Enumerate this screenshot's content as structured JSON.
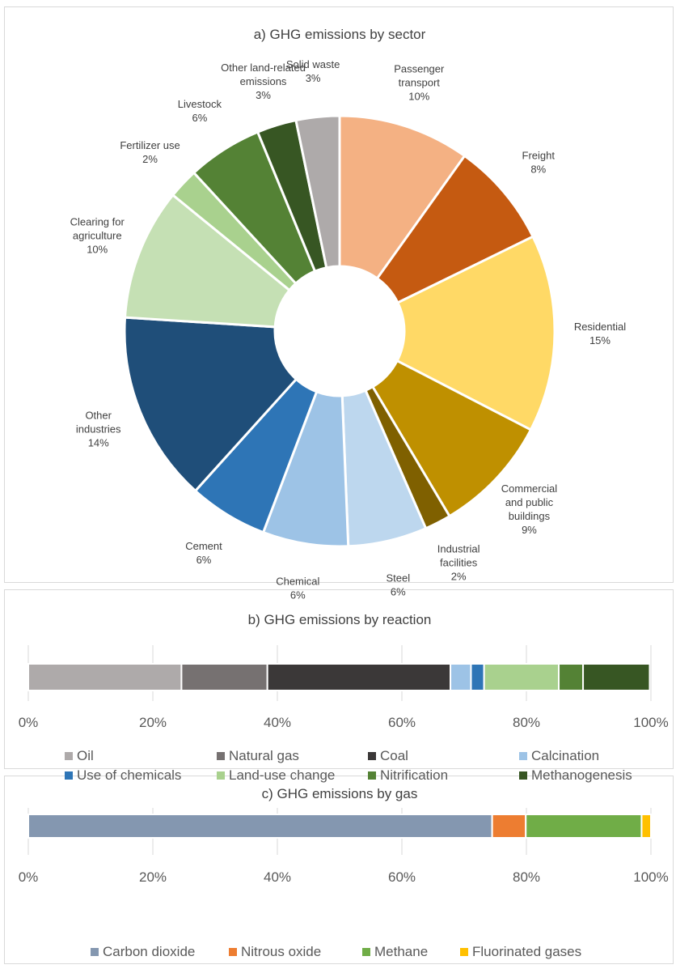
{
  "chart_data": [
    {
      "type": "pie",
      "title": "a) GHG emissions by sector",
      "slices": [
        {
          "label": [
            "Passenger",
            "transport"
          ],
          "value": 10,
          "pct": "10%",
          "color": "#F4B183"
        },
        {
          "label": [
            "Freight"
          ],
          "value": 8,
          "pct": "8%",
          "color": "#C55A11"
        },
        {
          "label": [
            "Residential"
          ],
          "value": 15,
          "pct": "15%",
          "color": "#FFD966"
        },
        {
          "label": [
            "Commercial",
            "and public",
            "buildings"
          ],
          "value": 9,
          "pct": "9%",
          "color": "#BF9000"
        },
        {
          "label": [
            "Industrial",
            "facilities"
          ],
          "value": 2,
          "pct": "2%",
          "color": "#7F6000"
        },
        {
          "label": [
            "Steel"
          ],
          "value": 6,
          "pct": "6%",
          "color": "#BDD7EE"
        },
        {
          "label": [
            "Chemical"
          ],
          "value": 6.5,
          "pct": "6%",
          "color": "#9DC3E6"
        },
        {
          "label": [
            "Cement"
          ],
          "value": 6,
          "pct": "6%",
          "color": "#2E75B6"
        },
        {
          "label": [
            "Other",
            "industries"
          ],
          "value": 14.5,
          "pct": "14%",
          "color": "#1F4E79"
        },
        {
          "label": [
            "Clearing for",
            "agriculture"
          ],
          "value": 10,
          "pct": "10%",
          "color": "#C5E0B4"
        },
        {
          "label": [
            "Fertilizer use"
          ],
          "value": 2.3,
          "pct": "2%",
          "color": "#A9D18E"
        },
        {
          "label": [
            "Livestock"
          ],
          "value": 5.7,
          "pct": "6%",
          "color": "#548235"
        },
        {
          "label": [
            "Other land-related",
            "emissions"
          ],
          "value": 3,
          "pct": "3%",
          "color": "#375623"
        },
        {
          "label": [
            "Solid waste"
          ],
          "value": 3.3,
          "pct": "3%",
          "color": "#AEAAAA"
        }
      ]
    },
    {
      "type": "bar",
      "orientation": "horizontal-stacked",
      "title": "b) GHG emissions by reaction",
      "xlim": [
        0,
        100
      ],
      "ticks": [
        "0%",
        "20%",
        "40%",
        "60%",
        "80%",
        "100%"
      ],
      "legend_position": "bottom",
      "series": [
        {
          "name": "Oil",
          "value": 24.6,
          "color": "#AEAAAA"
        },
        {
          "name": "Natural gas",
          "value": 13.8,
          "color": "#767171"
        },
        {
          "name": "Coal",
          "value": 29.4,
          "color": "#3B3838"
        },
        {
          "name": "Calcination",
          "value": 3.3,
          "color": "#9DC3E6"
        },
        {
          "name": "Use of chemicals",
          "value": 2.1,
          "color": "#2E75B6"
        },
        {
          "name": "Land-use change",
          "value": 12.0,
          "color": "#A9D18E"
        },
        {
          "name": "Nitrification",
          "value": 3.9,
          "color": "#548235"
        },
        {
          "name": "Methanogenesis",
          "value": 10.7,
          "color": "#375623"
        }
      ]
    },
    {
      "type": "bar",
      "orientation": "horizontal-stacked",
      "title": "c) GHG emissions by gas",
      "xlim": [
        0,
        100
      ],
      "ticks": [
        "0%",
        "20%",
        "40%",
        "60%",
        "80%",
        "100%"
      ],
      "legend_position": "bottom",
      "series": [
        {
          "name": "Carbon dioxide",
          "value": 74.5,
          "color": "#8497B0"
        },
        {
          "name": "Nitrous oxide",
          "value": 5.4,
          "color": "#ED7D31"
        },
        {
          "name": "Methane",
          "value": 18.6,
          "color": "#70AD47"
        },
        {
          "name": "Fluorinated gases",
          "value": 1.5,
          "color": "#FFC000"
        }
      ]
    }
  ]
}
